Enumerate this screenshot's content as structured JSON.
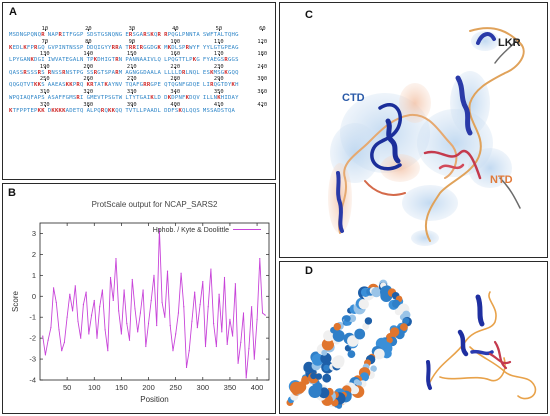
{
  "panels": {
    "a": {
      "label": "A"
    },
    "b": {
      "label": "B"
    },
    "c": {
      "label": "C",
      "domain_labels": {
        "ctd": "CTD",
        "lkr": "LKR",
        "ntd": "NTD"
      }
    },
    "d": {
      "label": "D"
    }
  },
  "sequence": {
    "rows": [
      {
        "ticks": [
          "10",
          "20",
          "30",
          "40",
          "50",
          "60"
        ],
        "blocks": [
          "MSDNGPQNQR",
          "NAPRITFGGP",
          "SDSTGSNQNG",
          "ERSGARSKQR",
          "RPQGLPNNTA",
          "SWFTALTQHG"
        ]
      },
      {
        "ticks": [
          "70",
          "80",
          "90",
          "100",
          "110",
          "120"
        ],
        "blocks": [
          "KEDLKFPRGQ",
          "GVPINTNSSP",
          "DDQIGYYRRA",
          "TRRIRGGDGK",
          "MKDLSPRWYF",
          "YYLGTGPEAG"
        ]
      },
      {
        "ticks": [
          "130",
          "140",
          "150",
          "160",
          "170",
          "180"
        ],
        "blocks": [
          "LPYGANKDGI",
          "IWVATEGALN",
          "TPKDHIGTRN",
          "PANNAAIVLQ",
          "LPQGTTLPKG",
          "FYAEGSRGGS"
        ]
      },
      {
        "ticks": [
          "190",
          "200",
          "210",
          "220",
          "230",
          "240"
        ],
        "blocks": [
          "QASSRSSSRS",
          "RNSSRNSTPG",
          "SSRGTSPARM",
          "AGNGGDAALA",
          "LLLLDRLNQL",
          "ESKMSGKGQQ"
        ]
      },
      {
        "ticks": [
          "250",
          "260",
          "270",
          "280",
          "290",
          "300"
        ],
        "blocks": [
          "QQGQTVTKKS",
          "AAEASKKPRQ",
          "KRTATKAYNV",
          "TQAFGRRGPE",
          "QTQGNFGDQE",
          "LIRQGTDYKH"
        ]
      },
      {
        "ticks": [
          "310",
          "320",
          "330",
          "340",
          "350",
          "360"
        ],
        "blocks": [
          "WPQIAQFAPS",
          "ASAFFGMSRI",
          "GMEVTPSGTW",
          "LTYTGAIKLD",
          "DKDPNFKDQV",
          "ILLNKHIDAY"
        ]
      },
      {
        "ticks": [
          "370",
          "380",
          "390",
          "400",
          "410",
          "420"
        ],
        "blocks": [
          "KTFPPTEPKK",
          "DKKKKADETQ",
          "ALPQRQKKQQ",
          "TVTLLPAADL",
          "DDFSKQLQQS",
          "MSSADSTQA"
        ]
      }
    ]
  },
  "chart_data": {
    "type": "line",
    "title": "ProtScale output for NCAP_SARS2",
    "xlabel": "Position",
    "ylabel": "Score",
    "xlim": [
      0,
      422
    ],
    "ylim": [
      -4,
      3.5
    ],
    "xticks": [
      50,
      100,
      150,
      200,
      250,
      300,
      350,
      400
    ],
    "yticks": [
      -4,
      -3,
      -2,
      -1,
      0,
      1,
      2,
      3
    ],
    "grid": false,
    "legend_position": "top-right",
    "series": [
      {
        "name": "Hphob. / Kyte & Doolittle",
        "color": "#c845d9",
        "x": [
          5,
          10,
          15,
          20,
          25,
          30,
          35,
          40,
          45,
          50,
          55,
          60,
          65,
          70,
          75,
          80,
          85,
          90,
          95,
          100,
          105,
          110,
          115,
          120,
          125,
          130,
          135,
          140,
          145,
          150,
          155,
          160,
          165,
          170,
          175,
          180,
          185,
          190,
          195,
          200,
          205,
          210,
          215,
          220,
          225,
          230,
          235,
          240,
          245,
          250,
          255,
          260,
          265,
          270,
          275,
          280,
          285,
          290,
          295,
          300,
          305,
          310,
          315,
          320,
          325,
          330,
          335,
          340,
          345,
          350,
          355,
          360,
          365,
          370,
          375,
          380,
          385,
          390,
          395,
          400,
          405,
          410,
          415
        ],
        "values": [
          -1.9,
          -2.8,
          -2.1,
          -1.5,
          0.4,
          -0.3,
          -1.6,
          -2.6,
          -2.2,
          -1.0,
          0.1,
          -0.7,
          0.5,
          -1.2,
          -2.0,
          -0.4,
          0.2,
          -1.8,
          -0.9,
          -0.2,
          -2.0,
          -0.5,
          0.3,
          -1.6,
          -2.6,
          0.9,
          -0.2,
          1.8,
          -0.7,
          -1.8,
          0.3,
          -1.3,
          -2.1,
          0.8,
          -0.6,
          -1.7,
          -0.8,
          0.3,
          -2.4,
          -1.3,
          -0.2,
          1.0,
          -1.4,
          3.2,
          -0.3,
          -1.0,
          1.2,
          -1.4,
          -2.6,
          -1.8,
          -0.8,
          1.1,
          -0.5,
          -3.4,
          -2.6,
          -1.2,
          0.2,
          -1.5,
          -0.4,
          0.7,
          -2.4,
          -0.5,
          1.3,
          -1.3,
          -2.4,
          0.1,
          -1.7,
          0.9,
          -2.3,
          -1.1,
          -1.9,
          0.6,
          -3.2,
          -2.2,
          -0.8,
          -3.9,
          -2.5,
          -0.5,
          -3.0,
          -1.1,
          1.8,
          -0.8,
          -0.9
        ]
      }
    ]
  }
}
